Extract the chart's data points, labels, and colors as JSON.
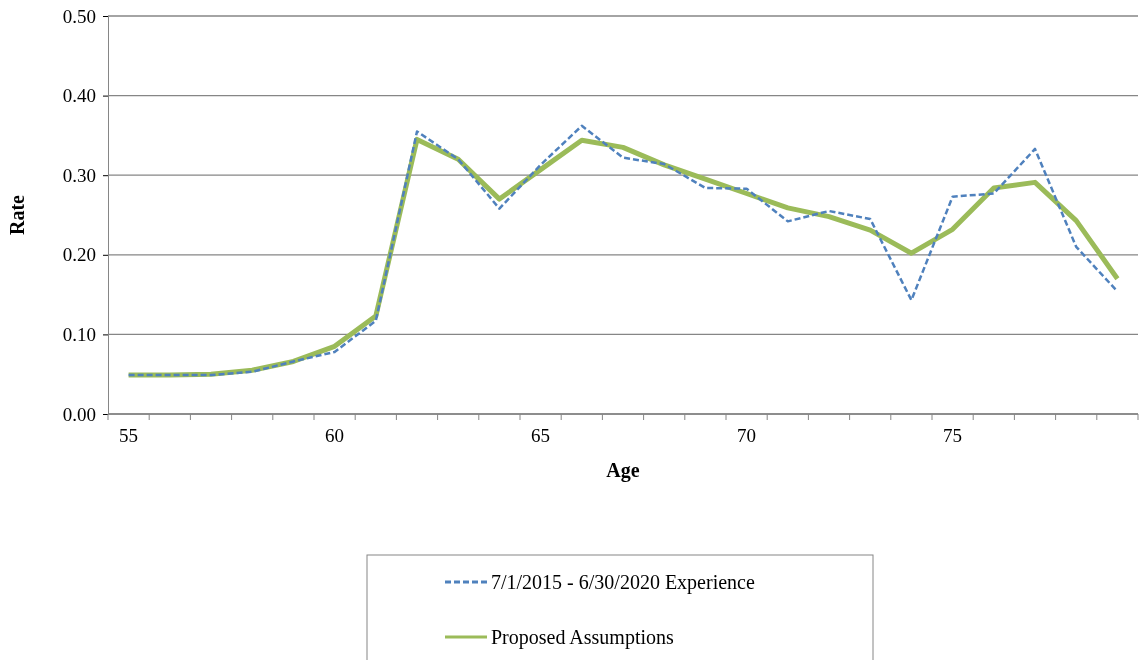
{
  "chart_data": {
    "type": "line",
    "xlabel": "Age",
    "ylabel": "Rate",
    "categories": [
      "55",
      null,
      null,
      null,
      null,
      "60",
      null,
      null,
      null,
      null,
      "65",
      null,
      null,
      null,
      null,
      "70",
      null,
      null,
      null,
      null,
      "75",
      null,
      null,
      null,
      null
    ],
    "series": [
      {
        "name": "7/1/2015 - 6/30/2020 Experience",
        "color": "#4f81bd",
        "line_style": "dashed",
        "values": [
          0.049,
          0.049,
          0.049,
          0.053,
          0.066,
          0.078,
          0.117,
          0.355,
          0.32,
          0.258,
          0.313,
          0.362,
          0.322,
          0.314,
          0.284,
          0.283,
          0.242,
          0.255,
          0.245,
          0.143,
          0.273,
          0.277,
          0.333,
          0.21,
          0.154
        ]
      },
      {
        "name": "Proposed Assumptions",
        "color": "#9bbb59",
        "line_style": "solid",
        "values": [
          0.049,
          0.049,
          0.05,
          0.055,
          0.066,
          0.085,
          0.123,
          0.345,
          0.32,
          0.27,
          0.307,
          0.344,
          0.335,
          0.313,
          0.295,
          0.277,
          0.259,
          0.248,
          0.231,
          0.202,
          0.232,
          0.284,
          0.291,
          0.243,
          0.17
        ]
      }
    ],
    "ylim": [
      0,
      0.5
    ],
    "yticks": [
      {
        "value": 0,
        "label": "0.00"
      },
      {
        "value": 0.1,
        "label": "0.10"
      },
      {
        "value": 0.2,
        "label": "0.20"
      },
      {
        "value": 0.3,
        "label": "0.30"
      },
      {
        "value": 0.4,
        "label": "0.40"
      },
      {
        "value": 0.5,
        "label": "0.50"
      }
    ],
    "grid": "y",
    "legend": "bottom",
    "marker": "none"
  }
}
